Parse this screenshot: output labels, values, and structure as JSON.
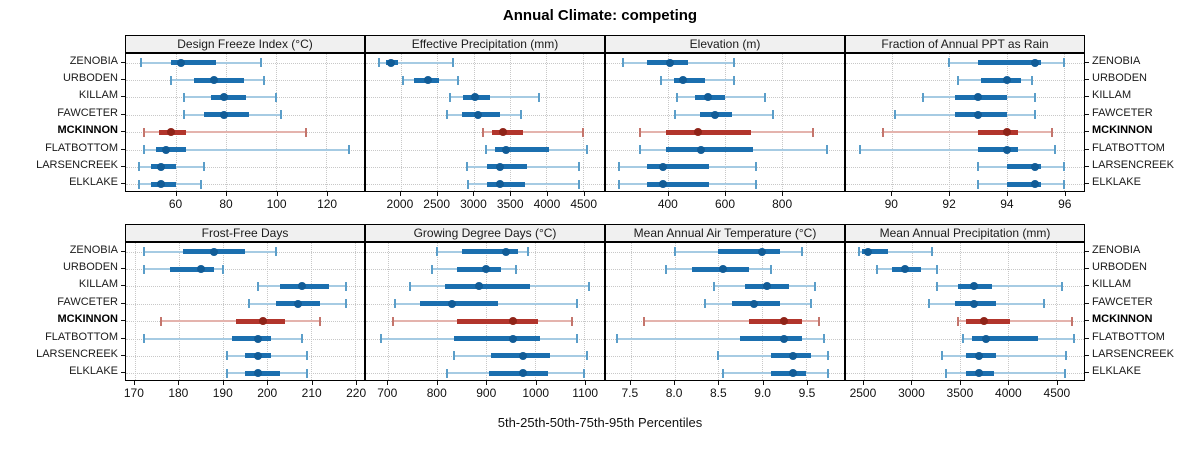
{
  "chart_data": {
    "type": "dotplot-percentiles",
    "title": "Annual Climate: competing",
    "caption": "5th-25th-50th-75th-95th Percentiles",
    "percentiles": [
      5,
      25,
      50,
      75,
      95
    ],
    "sites": [
      "ZENOBIA",
      "URBODEN",
      "KILLAM",
      "FAWCETER",
      "MCKINNON",
      "FLATBOTTOM",
      "LARSENCREEK",
      "ELKLAKE"
    ],
    "highlighted_site": "MCKINNON",
    "legend_position": "none",
    "grid": "dotted",
    "colors": {
      "series_thick": "#1B6FAF",
      "series_thin": "#A6CBE3",
      "series_cap": "#5B9EC9",
      "series_dot": "#115C97",
      "highlight_thick": "#B2352C",
      "highlight_thin": "#E4B3AD",
      "highlight_cap": "#C4756C",
      "highlight_dot": "#8F2318",
      "strip_bg": "#F0F0F0",
      "panel_border": "#000000",
      "gridline": "#C8C8C8"
    },
    "panels": [
      {
        "title": "Design Freeze Index (°C)",
        "xlim": [
          40,
          135
        ],
        "ticks": [
          60,
          80,
          100,
          120
        ],
        "tick_labels": [
          "60",
          "80",
          "100",
          "120"
        ],
        "values": [
          [
            46,
            58,
            62,
            76,
            94
          ],
          [
            58,
            67,
            75,
            87,
            95
          ],
          [
            63,
            74,
            79,
            88,
            100
          ],
          [
            63,
            71,
            79,
            89,
            102
          ],
          [
            47,
            53,
            58,
            64,
            112
          ],
          [
            47,
            52,
            56,
            64,
            129
          ],
          [
            45,
            50,
            54,
            60,
            71
          ],
          [
            45,
            50,
            54,
            60,
            70
          ]
        ]
      },
      {
        "title": "Effective Precipitation (mm)",
        "xlim": [
          1525,
          4790
        ],
        "ticks": [
          2000,
          2500,
          3000,
          3500,
          4000,
          4500
        ],
        "tick_labels": [
          "2000",
          "2500",
          "3000",
          "3500",
          "4000",
          "4500"
        ],
        "values": [
          [
            1700,
            1800,
            1870,
            1970,
            2720
          ],
          [
            2030,
            2180,
            2370,
            2520,
            2790
          ],
          [
            2680,
            2860,
            3020,
            3220,
            3900
          ],
          [
            2630,
            2840,
            3060,
            3360,
            3650
          ],
          [
            3130,
            3250,
            3400,
            3680,
            4500
          ],
          [
            3170,
            3290,
            3450,
            4040,
            4550
          ],
          [
            2910,
            3180,
            3360,
            3730,
            4450
          ],
          [
            2920,
            3180,
            3360,
            3700,
            4450
          ]
        ]
      },
      {
        "title": "Elevation (m)",
        "xlim": [
          180,
          1020
        ],
        "ticks": [
          400,
          600,
          800
        ],
        "tick_labels": [
          "400",
          "600",
          "800"
        ],
        "values": [
          [
            240,
            325,
            405,
            470,
            630
          ],
          [
            375,
            420,
            450,
            530,
            630
          ],
          [
            430,
            495,
            540,
            600,
            740
          ],
          [
            425,
            510,
            565,
            625,
            770
          ],
          [
            300,
            390,
            505,
            690,
            910
          ],
          [
            300,
            390,
            515,
            700,
            960
          ],
          [
            225,
            325,
            380,
            545,
            710
          ],
          [
            225,
            325,
            380,
            545,
            710
          ]
        ]
      },
      {
        "title": "Fraction of Annual PPT as Rain",
        "xlim": [
          88.4,
          96.7
        ],
        "ticks": [
          90,
          92,
          94,
          96
        ],
        "tick_labels": [
          "90",
          "92",
          "94",
          "96"
        ],
        "values": [
          [
            92.0,
            93.0,
            95.0,
            95.2,
            96.0
          ],
          [
            92.3,
            93.1,
            94.0,
            94.5,
            94.9
          ],
          [
            91.1,
            92.2,
            93.0,
            94.0,
            95.0
          ],
          [
            90.1,
            92.2,
            93.0,
            94.0,
            95.0
          ],
          [
            89.7,
            93.0,
            94.0,
            94.4,
            95.6
          ],
          [
            88.9,
            93.0,
            94.0,
            94.4,
            95.7
          ],
          [
            93.0,
            94.0,
            95.0,
            95.2,
            96.0
          ],
          [
            93.0,
            94.0,
            95.0,
            95.2,
            96.0
          ]
        ]
      },
      {
        "title": "Frost-Free Days",
        "xlim": [
          168,
          222
        ],
        "ticks": [
          170,
          180,
          190,
          200,
          210,
          220
        ],
        "tick_labels": [
          "170",
          "180",
          "190",
          "200",
          "210",
          "220"
        ],
        "values": [
          [
            172,
            181,
            188,
            195,
            202
          ],
          [
            172,
            178,
            185,
            188,
            190
          ],
          [
            198,
            203,
            208,
            214,
            218
          ],
          [
            196,
            202,
            207,
            212,
            218
          ],
          [
            176,
            193,
            199,
            204,
            212
          ],
          [
            172,
            192,
            198,
            201,
            208
          ],
          [
            191,
            195,
            198,
            201,
            209
          ],
          [
            191,
            195,
            198,
            203,
            209
          ]
        ]
      },
      {
        "title": "Growing Degree Days (°C)",
        "xlim": [
          655,
          1140
        ],
        "ticks": [
          700,
          800,
          900,
          1000,
          1100
        ],
        "tick_labels": [
          "700",
          "800",
          "900",
          "1000",
          "1100"
        ],
        "values": [
          [
            800,
            850,
            940,
            965,
            985
          ],
          [
            790,
            840,
            900,
            930,
            960
          ],
          [
            745,
            815,
            885,
            990,
            1110
          ],
          [
            715,
            765,
            830,
            925,
            1085
          ],
          [
            710,
            840,
            955,
            1005,
            1075
          ],
          [
            685,
            835,
            955,
            1010,
            1085
          ],
          [
            835,
            910,
            975,
            1030,
            1105
          ],
          [
            820,
            905,
            975,
            1025,
            1100
          ]
        ]
      },
      {
        "title": "Mean Annual Air Temperature (°C)",
        "xlim": [
          7.22,
          9.93
        ],
        "ticks": [
          7.5,
          8.0,
          8.5,
          9.0,
          9.5
        ],
        "tick_labels": [
          "7.5",
          "8.0",
          "8.5",
          "9.0",
          "9.5"
        ],
        "values": [
          [
            8.0,
            8.5,
            9.0,
            9.2,
            9.45
          ],
          [
            7.9,
            8.2,
            8.55,
            8.85,
            9.1
          ],
          [
            8.45,
            8.8,
            9.05,
            9.3,
            9.6
          ],
          [
            8.35,
            8.65,
            8.9,
            9.2,
            9.55
          ],
          [
            7.65,
            8.85,
            9.25,
            9.45,
            9.65
          ],
          [
            7.35,
            8.75,
            9.25,
            9.45,
            9.7
          ],
          [
            8.5,
            9.1,
            9.35,
            9.55,
            9.75
          ],
          [
            8.55,
            9.1,
            9.35,
            9.5,
            9.75
          ]
        ]
      },
      {
        "title": "Mean Annual Precipitation (mm)",
        "xlim": [
          2315,
          4790
        ],
        "ticks": [
          2500,
          3000,
          3500,
          4000,
          4500
        ],
        "tick_labels": [
          "2500",
          "3000",
          "3500",
          "4000",
          "4500"
        ],
        "values": [
          [
            2450,
            2480,
            2540,
            2750,
            3210
          ],
          [
            2640,
            2790,
            2930,
            3090,
            3260
          ],
          [
            3260,
            3480,
            3650,
            3830,
            4560
          ],
          [
            3180,
            3450,
            3650,
            3870,
            4370
          ],
          [
            3480,
            3560,
            3750,
            4020,
            4670
          ],
          [
            3530,
            3630,
            3770,
            4310,
            4690
          ],
          [
            3310,
            3560,
            3700,
            3870,
            4600
          ],
          [
            3360,
            3560,
            3700,
            3850,
            4590
          ]
        ]
      }
    ]
  }
}
